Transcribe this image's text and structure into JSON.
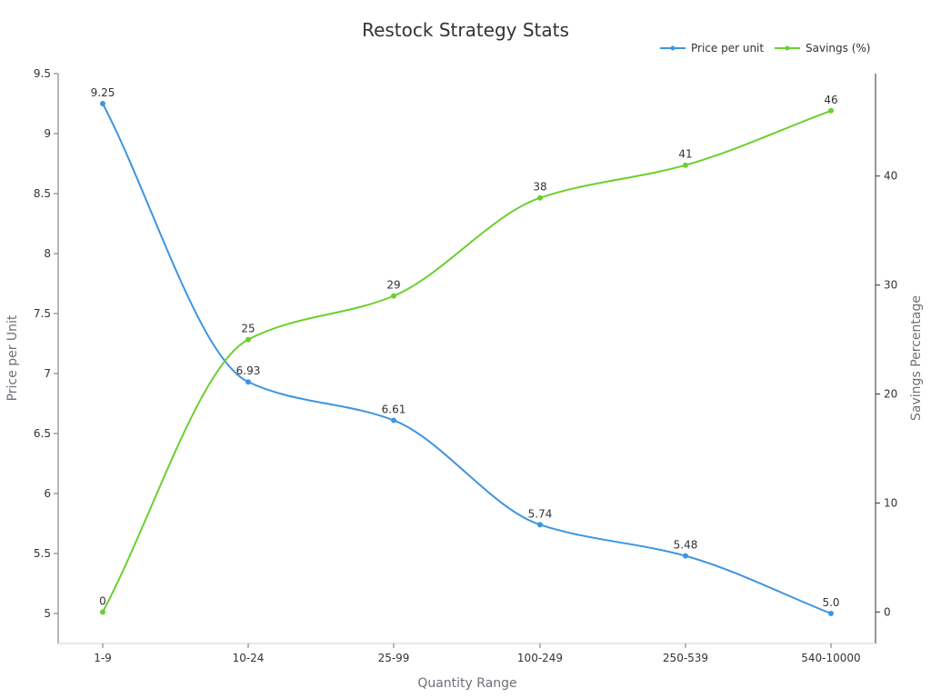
{
  "chart_data": {
    "type": "line",
    "title": "Restock Strategy Stats",
    "xlabel": "Quantity Range",
    "ylabel_left": "Price per Unit",
    "ylabel_right": "Savings Percentage",
    "categories": [
      "1-9",
      "10-24",
      "25-99",
      "100-249",
      "250-539",
      "540-10000"
    ],
    "y_left": {
      "ticks": [
        "5",
        "5.5",
        "6",
        "6.5",
        "7",
        "7.5",
        "8",
        "8.5",
        "9",
        "9.5"
      ],
      "range": [
        4.75,
        9.5
      ]
    },
    "y_right": {
      "ticks": [
        "0",
        "10",
        "20",
        "30",
        "40"
      ],
      "range": [
        -2.89,
        49.4
      ]
    },
    "legend_position": "top-right",
    "series": [
      {
        "name": "Price per unit",
        "axis": "left",
        "color": "#3d95e0",
        "values": [
          9.25,
          6.93,
          6.61,
          5.74,
          5.48,
          5.0
        ],
        "labels": [
          "9.25",
          "6.93",
          "6.61",
          "5.74",
          "5.48",
          "5.0"
        ]
      },
      {
        "name": "Savings (%)",
        "axis": "right",
        "color": "#6bd02d",
        "values": [
          0,
          25,
          29,
          38,
          41,
          46
        ],
        "labels": [
          "0",
          "25",
          "29",
          "38",
          "41",
          "46"
        ]
      }
    ],
    "grid": false,
    "smooth": true
  }
}
